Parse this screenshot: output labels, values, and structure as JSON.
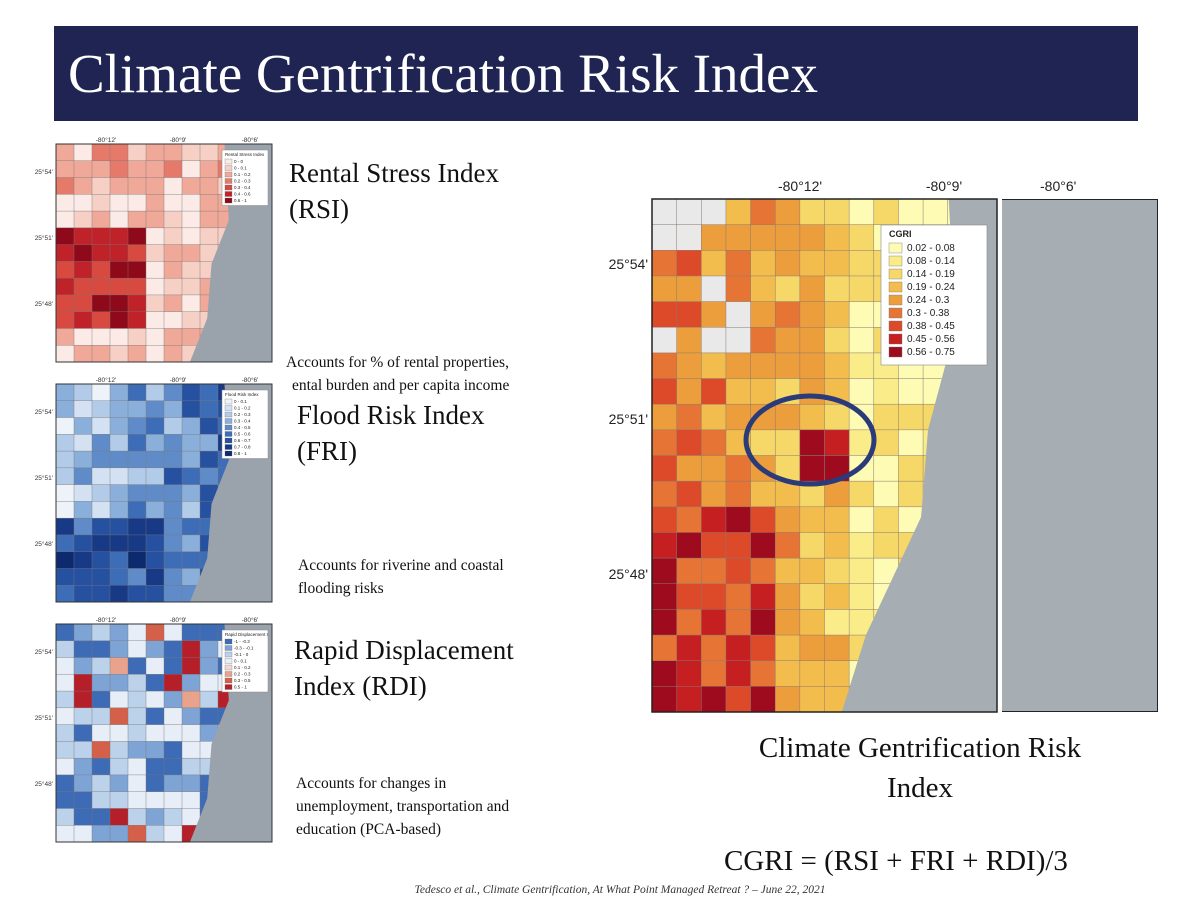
{
  "title": "Climate Gentrification Risk Index",
  "panels": [
    {
      "name": "Rental Stress Index",
      "abbr": "(RSI)",
      "description": [
        "Accounts for % of rental properties,",
        "ental burden and per capita income"
      ],
      "palette": "reds",
      "legend_title": "Rental Stress Index",
      "legend_ranges": [
        "0 - 0",
        "0 - 0.1",
        "0.1 - 0.2",
        "0.2 - 0.3",
        "0.3 - 0.4",
        "0.4 - 0.6",
        "0.6 - 1"
      ],
      "lon_ticks": [
        "-80°12'",
        "-80°9'",
        "-80°6'"
      ],
      "lat_ticks": [
        "25°54'",
        "25°51'",
        "25°48'"
      ]
    },
    {
      "name": "Flood Risk Index",
      "abbr": "(FRI)",
      "description": [
        "Accounts for riverine and coastal",
        "flooding risks"
      ],
      "palette": "blues",
      "legend_title": "Flood Risk Index",
      "legend_ranges": [
        "0 - 0.1",
        "0.1 - 0.2",
        "0.2 - 0.3",
        "0.3 - 0.4",
        "0.4 - 0.5",
        "0.5 - 0.6",
        "0.6 - 0.7",
        "0.7 - 0.8",
        "0.8 - 1"
      ],
      "lon_ticks": [
        "-80°12'",
        "-80°9'",
        "-80°6'"
      ],
      "lat_ticks": [
        "25°54'",
        "25°51'",
        "25°48'"
      ]
    },
    {
      "name": "Rapid Displacement",
      "abbr": "Index (RDI)",
      "description": [
        "Accounts for changes in",
        "unemployment, transportation and",
        "education (PCA-based)"
      ],
      "palette": "diverging",
      "legend_title": "Rapid Displacement I",
      "legend_ranges": [
        "-1 - -0.3",
        "-0.3 - -0.1",
        "-0.1 - 0",
        "0 - 0.1",
        "0.1 - 0.2",
        "0.2 - 0.3",
        "0.3 - 0.5",
        "0.5 - 1"
      ],
      "lon_ticks": [
        "-80°12'",
        "-80°9'",
        "-80°6'"
      ],
      "lat_ticks": [
        "25°54'",
        "25°51'",
        "25°48'"
      ]
    }
  ],
  "main_map": {
    "lon_ticks": [
      "-80°12'",
      "-80°9'",
      "-80°6'"
    ],
    "lat_ticks": [
      "25°54'",
      "25°51'",
      "25°48'"
    ],
    "legend_title": "CGRI",
    "legend": [
      {
        "range": "0.02 - 0.08",
        "color": "#fdfbb4"
      },
      {
        "range": "0.08 - 0.14",
        "color": "#f9ec89"
      },
      {
        "range": "0.14 - 0.19",
        "color": "#f5d868"
      },
      {
        "range": "0.19 - 0.24",
        "color": "#f2bd4d"
      },
      {
        "range": "0.24 - 0.3",
        "color": "#ec9e3d"
      },
      {
        "range": "0.3 - 0.38",
        "color": "#e67434"
      },
      {
        "range": "0.38 - 0.45",
        "color": "#dc4a2a"
      },
      {
        "range": "0.45 - 0.56",
        "color": "#c61f22"
      },
      {
        "range": "0.56 - 0.75",
        "color": "#9e0a1e"
      }
    ],
    "highlight_color": "#2b3b7a",
    "caption": [
      "Climate Gentrification Risk",
      "Index"
    ]
  },
  "formula": "CGRI = (RSI + FRI + RDI)/3",
  "footer": "Tedesco et al., Climate Gentrification, At What Point Managed Retreat ? – June 22, 2021"
}
